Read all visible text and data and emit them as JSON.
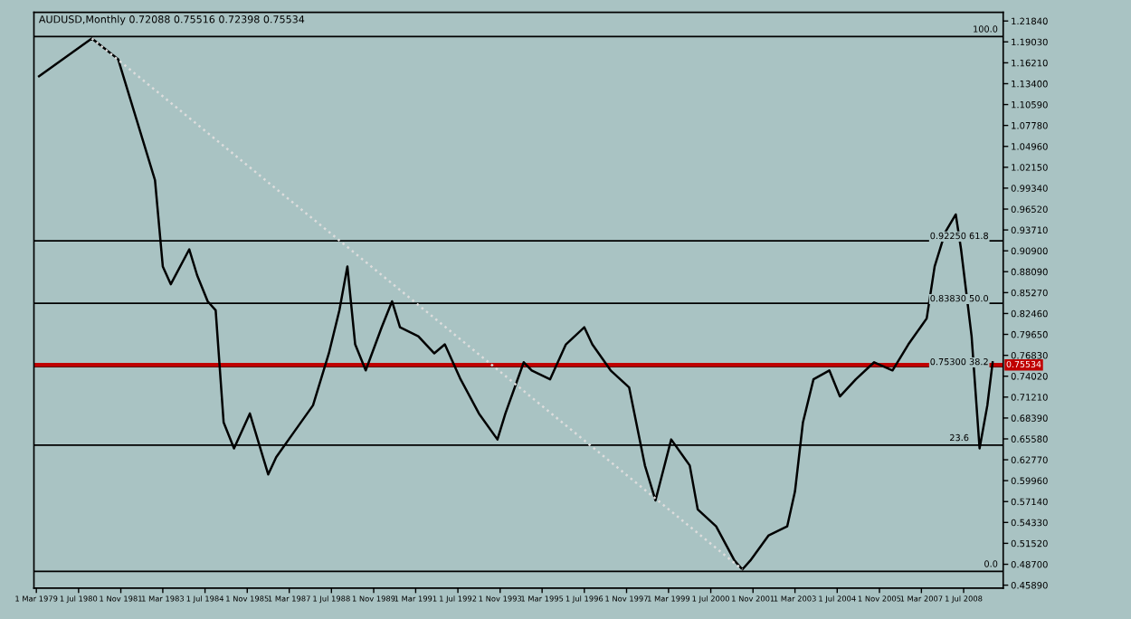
{
  "chart_data": {
    "type": "line",
    "title": "AUDUSD,Monthly 0.72088 0.75516 0.72398 0.75534",
    "series": [
      {
        "color": "#000000",
        "x": [
          "1979-04",
          "1980-12",
          "1981-10",
          "1982-05",
          "1982-12",
          "1983-03",
          "1983-06",
          "1984-01",
          "1984-04",
          "1984-08",
          "1984-11",
          "1985-02",
          "1985-06",
          "1985-12",
          "1986-07",
          "1986-10",
          "1987-05",
          "1987-12",
          "1988-06",
          "1988-10",
          "1989-01",
          "1989-04",
          "1989-08",
          "1990-02",
          "1990-06",
          "1990-09",
          "1991-04",
          "1991-10",
          "1992-02",
          "1992-08",
          "1993-03",
          "1993-10",
          "1994-01",
          "1994-08",
          "1994-11",
          "1995-06",
          "1995-12",
          "1996-07",
          "1996-10",
          "1997-05",
          "1997-12",
          "1998-06",
          "1998-10",
          "1999-04",
          "1999-11",
          "2000-02",
          "2000-09",
          "2001-04",
          "2001-07",
          "2001-10",
          "2002-05",
          "2002-12",
          "2003-03",
          "2003-06",
          "2003-10",
          "2004-04",
          "2004-08",
          "2005-02",
          "2005-09",
          "2006-04",
          "2006-10",
          "2007-05",
          "2007-08",
          "2007-12",
          "2008-04",
          "2008-06",
          "2008-10",
          "2009-01",
          "2009-04",
          "2009-06"
        ],
        "values": [
          1.144,
          1.195,
          1.167,
          1.086,
          1.004,
          0.888,
          0.864,
          0.911,
          0.876,
          0.841,
          0.829,
          0.678,
          0.643,
          0.69,
          0.608,
          0.631,
          0.666,
          0.701,
          0.771,
          0.829,
          0.888,
          0.783,
          0.748,
          0.806,
          0.841,
          0.806,
          0.794,
          0.771,
          0.783,
          0.736,
          0.69,
          0.655,
          0.69,
          0.759,
          0.748,
          0.736,
          0.783,
          0.806,
          0.783,
          0.748,
          0.725,
          0.62,
          0.573,
          0.655,
          0.62,
          0.561,
          0.538,
          0.492,
          0.48,
          0.492,
          0.526,
          0.538,
          0.585,
          0.678,
          0.736,
          0.748,
          0.713,
          0.736,
          0.759,
          0.748,
          0.783,
          0.818,
          0.888,
          0.934,
          0.958,
          0.911,
          0.794,
          0.643,
          0.701,
          0.759
        ]
      },
      {
        "color": "#dddddd",
        "line_style": "dotted",
        "x": [
          "1980-12",
          "2001-07"
        ],
        "values": [
          1.195,
          0.48
        ]
      }
    ],
    "ref_lines": [
      {
        "axis": "y",
        "value": 1.1975,
        "color": "#000000"
      },
      {
        "axis": "y",
        "value": 0.9225,
        "label": "0.92250 61.8",
        "color": "#000000"
      },
      {
        "axis": "y",
        "value": 0.8383,
        "label": "0.83830 50.0",
        "color": "#000000"
      },
      {
        "axis": "y",
        "value": 0.753,
        "label": "0.75300 38.2",
        "color": "#000000"
      },
      {
        "axis": "y",
        "value": 0.6474,
        "color": "#000000"
      },
      {
        "axis": "y",
        "value": 0.4775,
        "color": "#000000"
      },
      {
        "axis": "y",
        "value": 0.75534,
        "label": "0.75534",
        "color": "#c00000"
      }
    ],
    "annotations": [
      {
        "text": "100.0",
        "x": "2009-08",
        "y": 1.1975
      },
      {
        "text": "23.6",
        "x": "2008-09",
        "y": 0.6474
      },
      {
        "text": "0.0",
        "x": "2009-08",
        "y": 0.4775
      }
    ],
    "xlim": [
      "1979-02",
      "2009-10"
    ],
    "xticks": [
      {
        "value": "1979-03-01",
        "label": "1 Mar 1979"
      },
      {
        "value": "1980-07-01",
        "label": "1 Jul 1980"
      },
      {
        "value": "1981-11-01",
        "label": "1 Nov 1981"
      },
      {
        "value": "1983-03-01",
        "label": "1 Mar 1983"
      },
      {
        "value": "1984-07-01",
        "label": "1 Jul 1984"
      },
      {
        "value": "1985-11-01",
        "label": "1 Nov 1985"
      },
      {
        "value": "1987-03-01",
        "label": "1 Mar 1987"
      },
      {
        "value": "1988-07-01",
        "label": "1 Jul 1988"
      },
      {
        "value": "1989-11-01",
        "label": "1 Nov 1989"
      },
      {
        "value": "1991-03-01",
        "label": "1 Mar 1991"
      },
      {
        "value": "1992-07-01",
        "label": "1 Jul 1992"
      },
      {
        "value": "1993-11-01",
        "label": "1 Nov 1993"
      },
      {
        "value": "1995-03-01",
        "label": "1 Mar 1995"
      },
      {
        "value": "1996-07-01",
        "label": "1 Jul 1996"
      },
      {
        "value": "1997-11-01",
        "label": "1 Nov 1997"
      },
      {
        "value": "1999-03-01",
        "label": "1 Mar 1999"
      },
      {
        "value": "2000-07-01",
        "label": "1 Jul 2000"
      },
      {
        "value": "2001-11-01",
        "label": "1 Nov 2001"
      },
      {
        "value": "2003-03-01",
        "label": "1 Mar 2003"
      },
      {
        "value": "2004-07-01",
        "label": "1 Jul 2004"
      },
      {
        "value": "2005-11-01",
        "label": "1 Nov 2005"
      },
      {
        "value": "2007-03-01",
        "label": "1 Mar 2007"
      },
      {
        "value": "2008-07-01",
        "label": "1 Jul 2008"
      }
    ],
    "ylim": [
      0.455,
      1.23
    ],
    "yticks": [
      {
        "value": 0.4589,
        "label": "0.45890"
      },
      {
        "value": 0.487,
        "label": "0.48700"
      },
      {
        "value": 0.5152,
        "label": "0.51520"
      },
      {
        "value": 0.5433,
        "label": "0.54330"
      },
      {
        "value": 0.5714,
        "label": "0.57140"
      },
      {
        "value": 0.5996,
        "label": "0.59960"
      },
      {
        "value": 0.6277,
        "label": "0.62770"
      },
      {
        "value": 0.6558,
        "label": "0.65580"
      },
      {
        "value": 0.6839,
        "label": "0.68390"
      },
      {
        "value": 0.7121,
        "label": "0.71210"
      },
      {
        "value": 0.7402,
        "label": "0.74020"
      },
      {
        "value": 0.7683,
        "label": "0.76830"
      },
      {
        "value": 0.7965,
        "label": "0.79650"
      },
      {
        "value": 0.8246,
        "label": "0.82460"
      },
      {
        "value": 0.8527,
        "label": "0.85270"
      },
      {
        "value": 0.8809,
        "label": "0.88090"
      },
      {
        "value": 0.909,
        "label": "0.90900"
      },
      {
        "value": 0.9371,
        "label": "0.93710"
      },
      {
        "value": 0.9652,
        "label": "0.96520"
      },
      {
        "value": 0.9934,
        "label": "0.99340"
      },
      {
        "value": 1.0215,
        "label": "1.02150"
      },
      {
        "value": 1.0496,
        "label": "1.04960"
      },
      {
        "value": 1.0778,
        "label": "1.07780"
      },
      {
        "value": 1.1059,
        "label": "1.10590"
      },
      {
        "value": 1.134,
        "label": "1.13400"
      },
      {
        "value": 1.1621,
        "label": "1.16210"
      },
      {
        "value": 1.1903,
        "label": "1.19030"
      },
      {
        "value": 1.2184,
        "label": "1.21840"
      }
    ],
    "grid": false,
    "legend": false,
    "marker": "none"
  }
}
